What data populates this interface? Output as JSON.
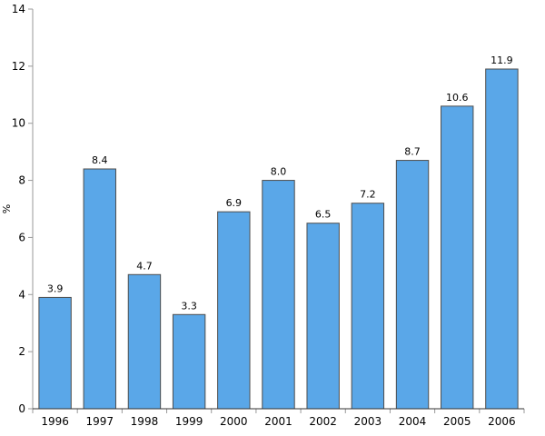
{
  "chart_data": {
    "type": "bar",
    "title": "",
    "categories": [
      "1996",
      "1997",
      "1998",
      "1999",
      "2000",
      "2001",
      "2002",
      "2003",
      "2004",
      "2005",
      "2006"
    ],
    "values": [
      3.9,
      8.4,
      4.7,
      3.3,
      6.9,
      8.0,
      6.5,
      7.2,
      8.7,
      10.6,
      11.9
    ],
    "value_labels": [
      "3.9",
      "8.4",
      "4.7",
      "3.3",
      "6.9",
      "8.0",
      "6.5",
      "7.2",
      "8.7",
      "10.6",
      "11.9"
    ],
    "xlabel": "",
    "ylabel": "%",
    "ylim": [
      0,
      14
    ],
    "yticks": [
      0,
      2,
      4,
      6,
      8,
      10,
      12,
      14
    ],
    "grid": false,
    "legend": "none",
    "colors": {
      "bar_fill": "#5AA7E8",
      "bar_border": "#4D4D4D",
      "y_axis_line": "#999999",
      "x_axis_line": "#333333",
      "tick_mark": "#999999",
      "text": "#000000",
      "background": "#ffffff"
    }
  }
}
